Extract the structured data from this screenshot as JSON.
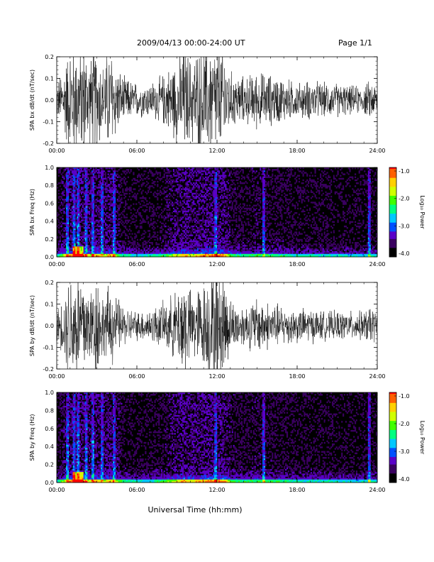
{
  "header": {
    "title": "2009/04/13  00:00-24:00 UT",
    "page": "Page 1/1"
  },
  "xlabel": "Universal Time (hh:mm)",
  "x_ticks": [
    "00:00",
    "06:00",
    "12:00",
    "18:00",
    "24:00"
  ],
  "colorbar": {
    "label": "Log₁₀ Power",
    "ticks": [
      "-1.0",
      "-2.0",
      "-3.0",
      "-4.0"
    ],
    "range": [
      -4.0,
      -1.0
    ],
    "colors": [
      "#000000",
      "#3a0060",
      "#5a00c8",
      "#0050ff",
      "#00c8ff",
      "#00ff80",
      "#40ff00",
      "#d0ff00",
      "#ffd000",
      "#ff6000",
      "#ff0000"
    ]
  },
  "chart_data": [
    {
      "type": "line",
      "ylabel": "SPA bx dB/dt (nT/sec)",
      "ylim": [
        -0.2,
        0.2
      ],
      "yticks": [
        "0.2",
        "0.1",
        "0.0",
        "-0.1",
        "-0.2"
      ],
      "xlim_hours": [
        0,
        24
      ],
      "note_samples": "waveform amplitude envelope by hour",
      "envelope": {
        "hours": [
          0,
          0.5,
          1,
          1.5,
          2,
          2.5,
          3,
          3.5,
          4,
          4.5,
          5,
          6,
          7,
          8,
          9,
          9.5,
          10,
          11,
          11.5,
          12,
          12.5,
          13,
          14,
          15,
          16,
          17,
          18,
          19,
          20,
          21,
          22,
          23,
          23.5,
          24
        ],
        "amplitude": [
          0.06,
          0.12,
          0.2,
          0.2,
          0.2,
          0.15,
          0.2,
          0.12,
          0.2,
          0.12,
          0.08,
          0.06,
          0.06,
          0.09,
          0.15,
          0.2,
          0.15,
          0.2,
          0.2,
          0.2,
          0.2,
          0.1,
          0.08,
          0.1,
          0.09,
          0.08,
          0.06,
          0.07,
          0.06,
          0.06,
          0.05,
          0.05,
          0.07,
          0.05
        ]
      }
    },
    {
      "type": "heatmap",
      "ylabel": "SPA bx Freq (Hz)",
      "ylim": [
        0.0,
        1.0
      ],
      "yticks": [
        "1.0",
        "0.8",
        "0.6",
        "0.4",
        "0.2",
        "0.0"
      ],
      "xlim_hours": [
        0,
        24
      ],
      "bright_bands_hours": [
        0.8,
        1.3,
        1.6,
        2.2,
        2.7,
        3.4,
        4.3,
        11.9,
        15.5,
        23.4
      ]
    },
    {
      "type": "line",
      "ylabel": "SPA by dB/dt (nT/sec)",
      "ylim": [
        -0.2,
        0.2
      ],
      "yticks": [
        "0.2",
        "0.1",
        "0.0",
        "-0.1",
        "-0.2"
      ],
      "xlim_hours": [
        0,
        24
      ],
      "envelope": {
        "hours": [
          0,
          0.5,
          1,
          1.5,
          2,
          2.5,
          3,
          3.5,
          4,
          4.5,
          5,
          6,
          7,
          8,
          9,
          9.5,
          10,
          11,
          11.5,
          12,
          12.5,
          13,
          14,
          15,
          16,
          17,
          18,
          19,
          20,
          21,
          22,
          23,
          23.5,
          24
        ],
        "amplitude": [
          0.05,
          0.1,
          0.2,
          0.2,
          0.2,
          0.13,
          0.2,
          0.1,
          0.15,
          0.1,
          0.07,
          0.05,
          0.06,
          0.08,
          0.12,
          0.2,
          0.12,
          0.15,
          0.2,
          0.2,
          0.2,
          0.09,
          0.07,
          0.1,
          0.08,
          0.07,
          0.06,
          0.06,
          0.05,
          0.05,
          0.05,
          0.05,
          0.07,
          0.05
        ]
      }
    },
    {
      "type": "heatmap",
      "ylabel": "SPA by Freq (Hz)",
      "ylim": [
        0.0,
        1.0
      ],
      "yticks": [
        "1.0",
        "0.8",
        "0.6",
        "0.4",
        "0.2",
        "0.0"
      ],
      "xlim_hours": [
        0,
        24
      ],
      "bright_bands_hours": [
        0.8,
        1.3,
        1.6,
        2.2,
        2.7,
        3.4,
        4.3,
        11.9,
        15.5,
        23.4
      ]
    }
  ]
}
